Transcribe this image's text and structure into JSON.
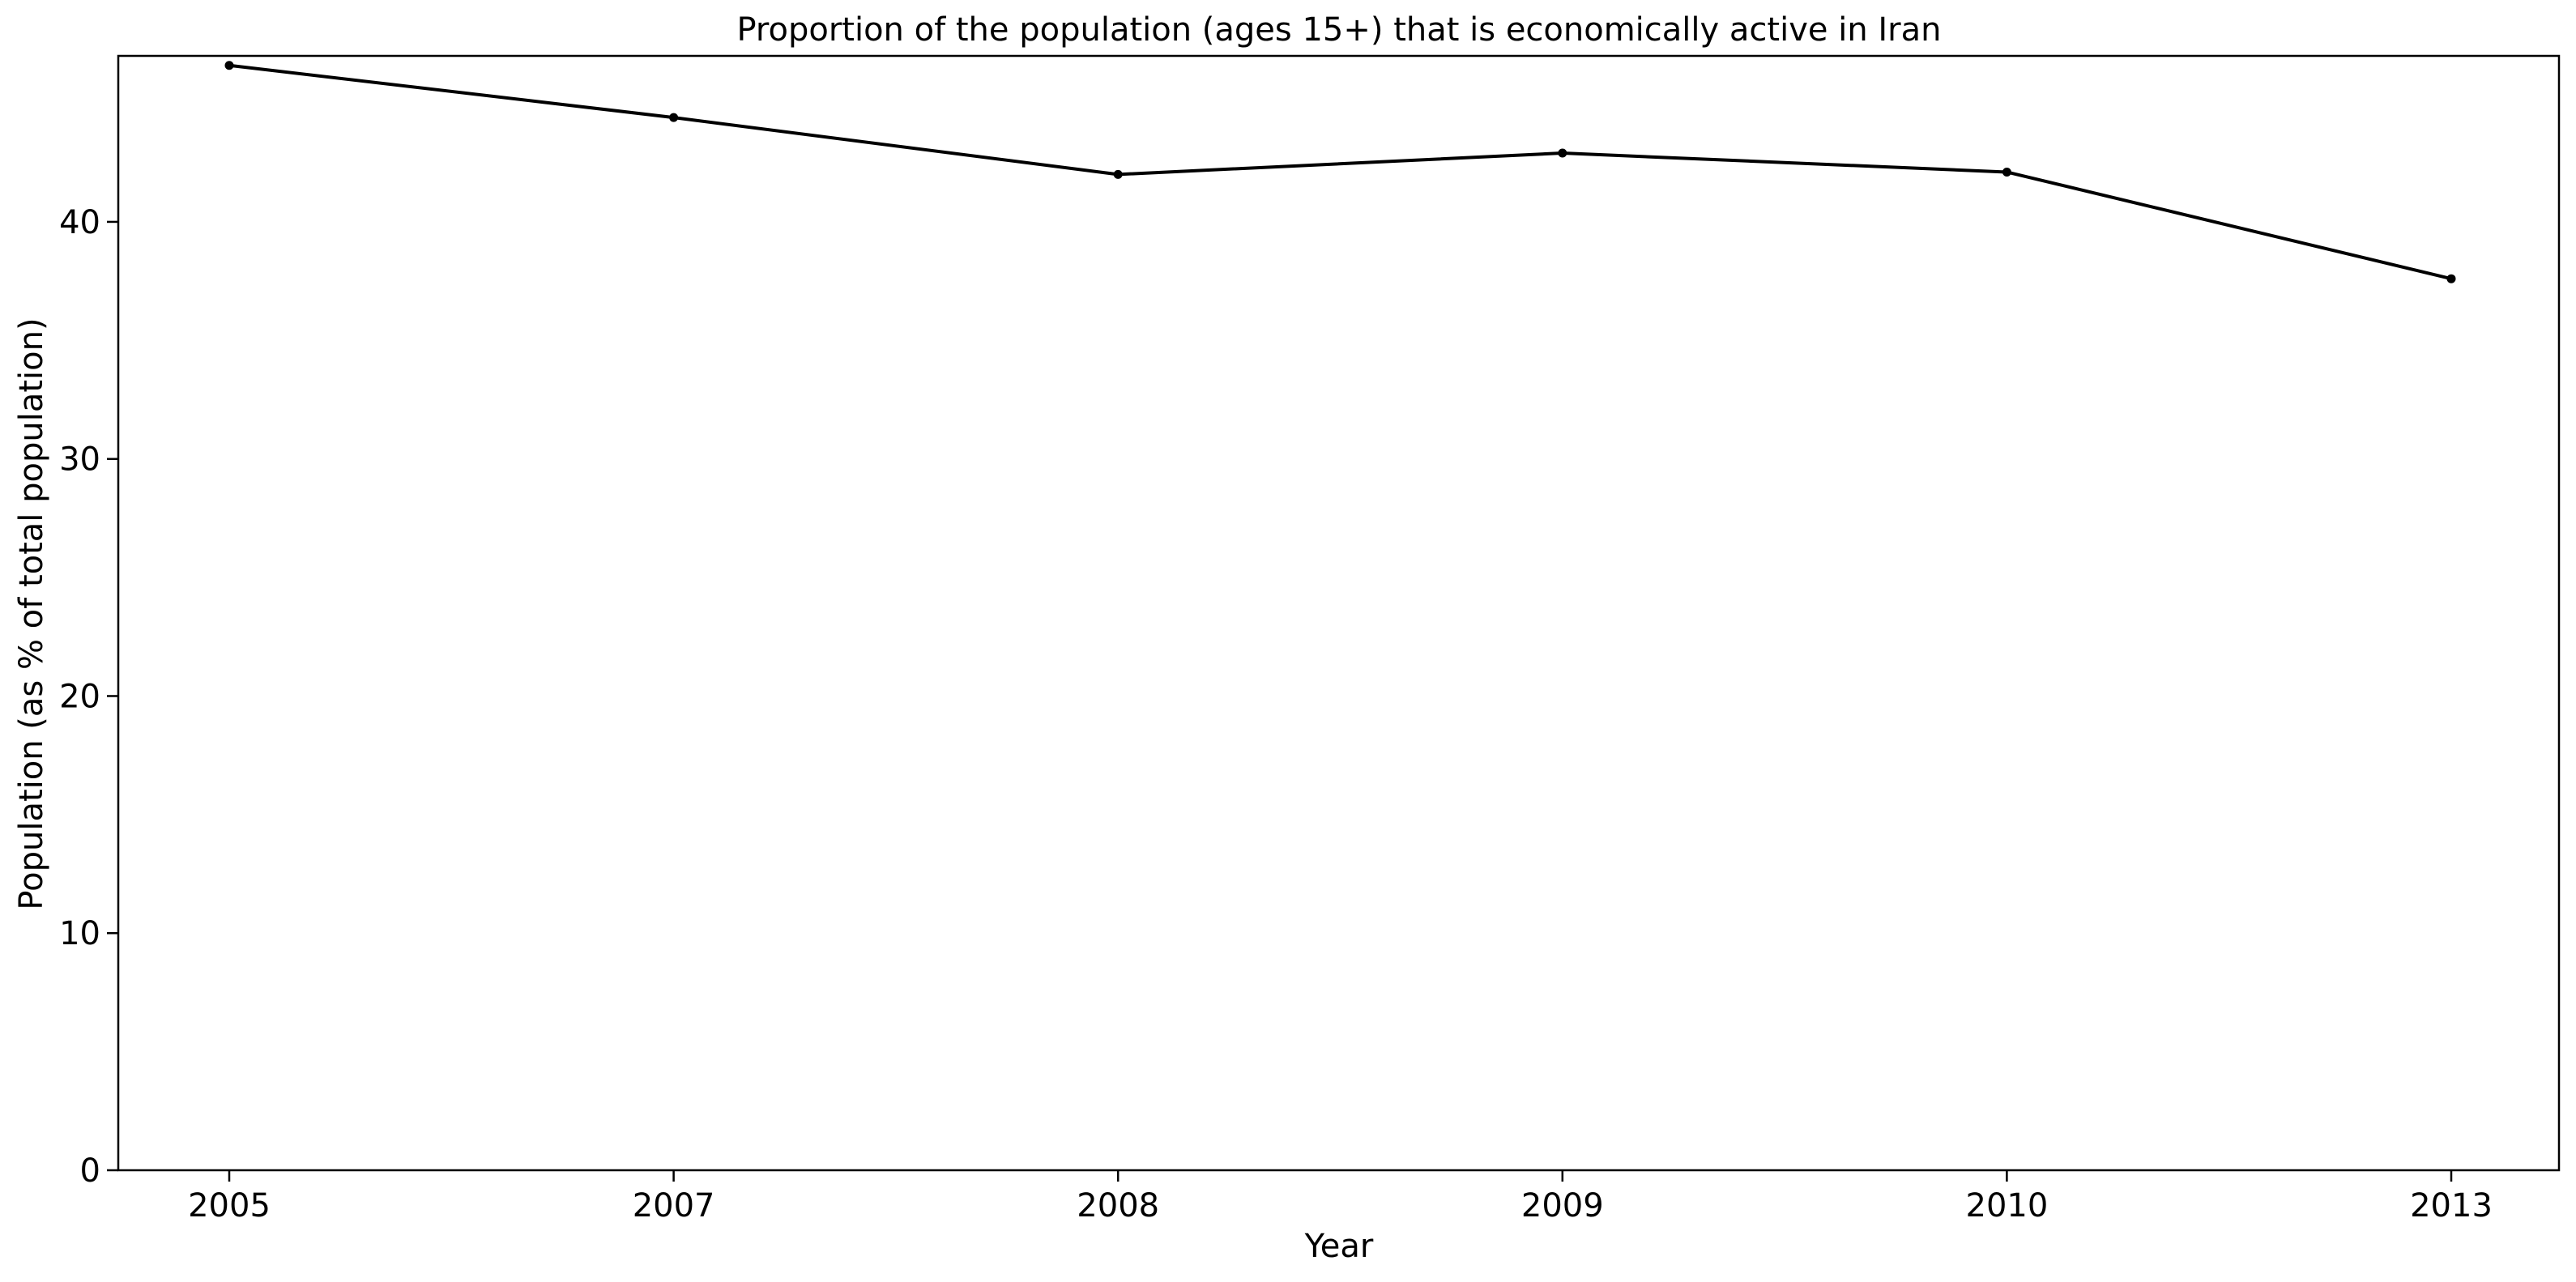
{
  "chart_data": {
    "type": "line",
    "title": "Proportion of the population (ages 15+) that is economically active in Iran",
    "xlabel": "Year",
    "ylabel": "Population (as % of total population)",
    "categories": [
      "2005",
      "2007",
      "2008",
      "2009",
      "2010",
      "2013"
    ],
    "series": [
      {
        "values": [
          46.6,
          44.4,
          42.0,
          42.9,
          42.1,
          37.6
        ],
        "color": "#000000",
        "marker": "circle"
      }
    ],
    "ylim": [
      0,
      47
    ],
    "yticks": [
      "0",
      "10",
      "20",
      "30",
      "40"
    ],
    "grid": false,
    "legend": "none"
  }
}
